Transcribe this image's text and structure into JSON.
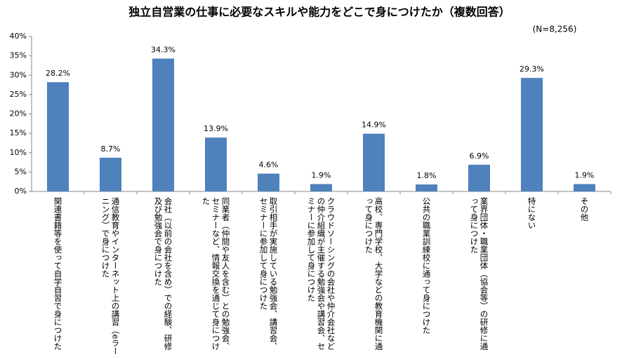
{
  "chart_data": {
    "type": "bar",
    "title": "独立自営業の仕事に必要なスキルや能力をどこで身につけたか（複数回答）",
    "subtitle": "(N=8,256)",
    "categories": [
      "関連書籍等を使って自学自習で身につけた",
      "通信教育やインターネット上の講習（eラーニング）で身につけた",
      "会社（以前の会社を含め）での経験、研修及び勉強会で身につけた",
      "同業者（仲間や友人を含む）との勉強会、セミナーなど、情報交換を通じて身につけた",
      "取引相手が実施している勉強会、講習会、セミナーに参加して身につけた",
      "クラウドソーシングの会社や仲介会社などの仲介組織が主催する勉強会や講習会、セミナーに参加して身につけた",
      "高校、専門学校、大学などの教育機関に通って身につけた",
      "公共の職業訓練校に通って身につけた",
      "業界団体・職業団体（協会等）の研修に通って身につけた",
      "特にない",
      "その他"
    ],
    "values": [
      28.2,
      8.7,
      34.3,
      13.9,
      4.6,
      1.9,
      14.9,
      1.8,
      6.9,
      29.3,
      1.9
    ],
    "value_labels": [
      "28.2%",
      "8.7%",
      "34.3%",
      "13.9%",
      "4.6%",
      "1.9%",
      "14.9%",
      "1.8%",
      "6.9%",
      "29.3%",
      "1.9%"
    ],
    "color": "#4f81bd",
    "ylim": [
      0,
      40
    ],
    "yticks": [
      {
        "value": 0,
        "label": "0%"
      },
      {
        "value": 5,
        "label": "5%"
      },
      {
        "value": 10,
        "label": "10%"
      },
      {
        "value": 15,
        "label": "15%"
      },
      {
        "value": 20,
        "label": "20%"
      },
      {
        "value": 25,
        "label": "25%"
      },
      {
        "value": 30,
        "label": "30%"
      },
      {
        "value": 35,
        "label": "35%"
      },
      {
        "value": 40,
        "label": "40%"
      }
    ],
    "grid": false
  }
}
